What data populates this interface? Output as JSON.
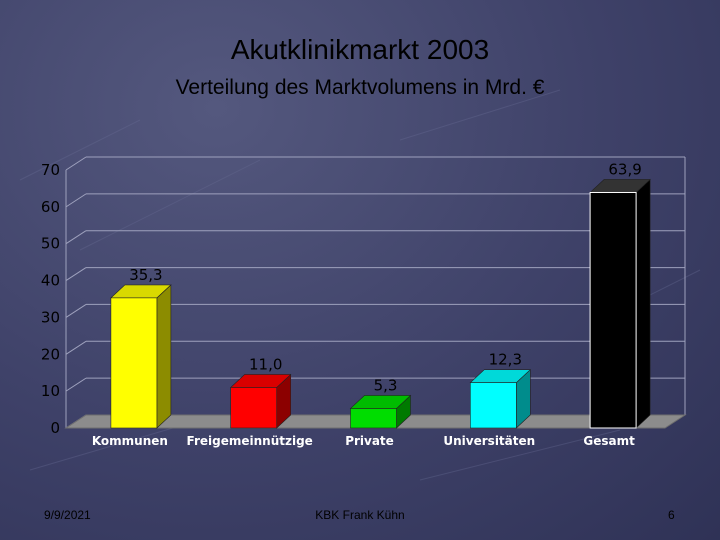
{
  "slide": {
    "title": "Akutklinikmarkt 2003",
    "subtitle": "Verteilung des Marktvolumens in Mrd. €",
    "date": "9/9/2021",
    "author": "KBK Frank Kühn",
    "page_number": "6"
  },
  "chart_data": {
    "type": "bar",
    "title": "",
    "xlabel": "",
    "ylabel": "",
    "ylim": [
      0,
      70
    ],
    "yticks": [
      0,
      10,
      20,
      30,
      40,
      50,
      60,
      70
    ],
    "categories": [
      "Kommunen",
      "Freigemeinnützige",
      "Private",
      "Universitäten",
      "Gesamt"
    ],
    "values": [
      35.3,
      11.0,
      5.3,
      12.3,
      63.9
    ],
    "value_labels": [
      "35,3",
      "11,0",
      "5,3",
      "12,3",
      "63,9"
    ],
    "colors": [
      "#ffff00",
      "#ff0000",
      "#00dd00",
      "#00ffff",
      "#000000"
    ],
    "grid": true,
    "legend": "none",
    "style": "3d"
  }
}
